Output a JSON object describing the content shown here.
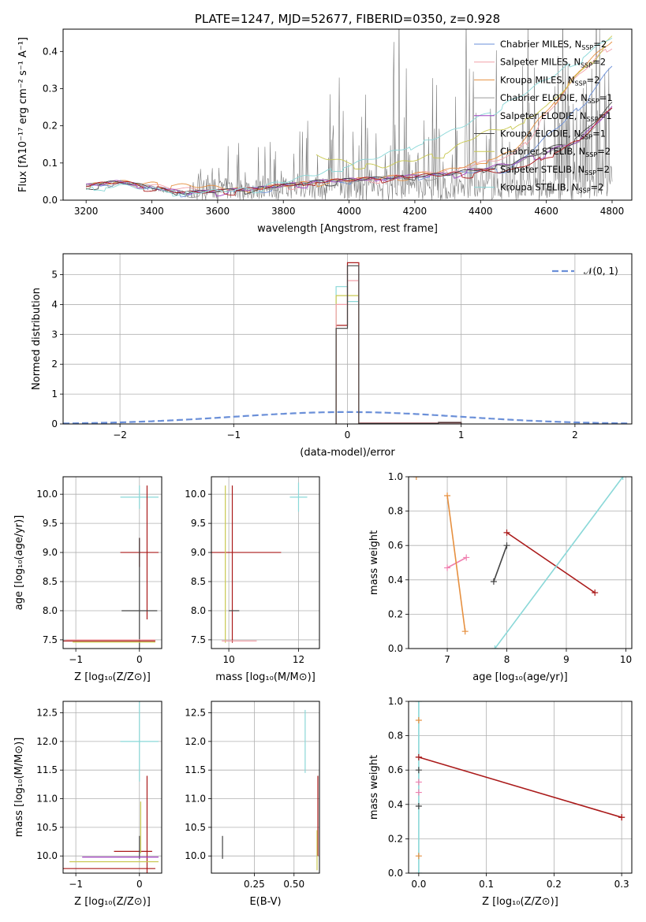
{
  "chart_data": [
    {
      "type": "line",
      "title": "PLATE=1247, MJD=52677, FIBERID=0350, z=0.928",
      "xlabel": "wavelength [Angstrom, rest frame]",
      "ylabel": "Flux [fλ10⁻¹⁷ erg cm⁻² s⁻¹ A⁻¹]",
      "xlim": [
        3130,
        4860
      ],
      "ylim": [
        0,
        0.46
      ],
      "xticks": [
        "3200",
        "3400",
        "3600",
        "3800",
        "4000",
        "4200",
        "4400",
        "4600",
        "4800"
      ],
      "yticks": [
        "0.0",
        "0.1",
        "0.2",
        "0.3",
        "0.4"
      ],
      "grid": false,
      "legend_position": "top-right",
      "series": [
        {
          "name": "Chabrier MILES, N_SSP=2",
          "color": "#6a8fd8",
          "x": [
            3200,
            3300,
            3500,
            3700,
            3900,
            4100,
            4300,
            4500,
            4700,
            4800
          ],
          "y": [
            0.04,
            0.05,
            0.02,
            0.03,
            0.05,
            0.06,
            0.07,
            0.09,
            0.25,
            0.36
          ]
        },
        {
          "name": "Salpeter MILES, N_SSP=2",
          "color": "#f2a0a8",
          "x": [
            3200,
            3300,
            3500,
            3700,
            3900,
            4100,
            4300,
            4500,
            4700,
            4800
          ],
          "y": [
            0.04,
            0.05,
            0.03,
            0.03,
            0.05,
            0.06,
            0.08,
            0.12,
            0.34,
            0.42
          ]
        },
        {
          "name": "Kroupa MILES, N_SSP=2",
          "color": "#e69040",
          "x": [
            3200,
            3300,
            3500,
            3700,
            3900,
            4100,
            4300,
            4500,
            4700,
            4800
          ],
          "y": [
            0.04,
            0.05,
            0.04,
            0.03,
            0.05,
            0.06,
            0.08,
            0.13,
            0.35,
            0.43
          ]
        },
        {
          "name": "Chabrier ELODIE, N_SSP=1",
          "color": "#9a9a9a",
          "x": [
            3200,
            3300,
            3500,
            3700,
            3900,
            4100,
            4300,
            4500,
            4700,
            4800
          ],
          "y": [
            0.04,
            0.05,
            0.02,
            0.03,
            0.05,
            0.06,
            0.07,
            0.1,
            0.16,
            0.25
          ]
        },
        {
          "name": "Salpeter ELODIE, N_SSP=1",
          "color": "#a040c0",
          "x": [
            3200,
            3300,
            3500,
            3700,
            3900,
            4100,
            4300,
            4500,
            4700,
            4800
          ],
          "y": [
            0.04,
            0.05,
            0.02,
            0.03,
            0.05,
            0.06,
            0.07,
            0.1,
            0.16,
            0.25
          ]
        },
        {
          "name": "Kroupa ELODIE, N_SSP=1",
          "color": "#444444",
          "x": [
            3200,
            3300,
            3500,
            3700,
            3900,
            4100,
            4300,
            4500,
            4700,
            4800
          ],
          "y": [
            0.04,
            0.05,
            0.02,
            0.03,
            0.05,
            0.06,
            0.07,
            0.1,
            0.17,
            0.26
          ]
        },
        {
          "name": "Chabrier STELIB, N_SSP=2",
          "color": "#c8c850",
          "x": [
            3900,
            4000,
            4100,
            4200,
            4300,
            4400,
            4500,
            4600,
            4700,
            4800
          ],
          "y": [
            0.12,
            0.1,
            0.09,
            0.11,
            0.13,
            0.18,
            0.2,
            0.25,
            0.34,
            0.44
          ]
        },
        {
          "name": "Salpeter STELIB, N_SSP=2",
          "color": "#aa1a1a",
          "x": [
            3200,
            3300,
            3500,
            3700,
            3900,
            4100,
            4300,
            4500,
            4700,
            4800
          ],
          "y": [
            0.04,
            0.05,
            0.02,
            0.03,
            0.05,
            0.06,
            0.07,
            0.08,
            0.16,
            0.25
          ]
        },
        {
          "name": "Kroupa STELIB, N_SSP=2",
          "color": "#8ad8d8",
          "x": [
            3200,
            3300,
            3500,
            3700,
            3900,
            4100,
            4300,
            4500,
            4700,
            4800
          ],
          "y": [
            0.03,
            0.04,
            0.02,
            0.03,
            0.07,
            0.12,
            0.18,
            0.27,
            0.38,
            0.44
          ]
        }
      ],
      "data_points": {
        "x": [
          3200,
          3300,
          3400,
          3500,
          3550,
          3600,
          3650,
          3700,
          3750,
          3800,
          3850,
          3900,
          3950,
          4000,
          4050,
          4100,
          4150,
          4200,
          4250,
          4300,
          4350,
          4400,
          4450,
          4500,
          4550,
          4600,
          4650,
          4700,
          4750,
          4800
        ],
        "y": [
          0.04,
          0.05,
          0.03,
          0.02,
          0.08,
          0.06,
          0.15,
          0.04,
          0.18,
          0.05,
          0.22,
          0.14,
          0.4,
          0.1,
          0.3,
          0.04,
          0.42,
          0.12,
          0.38,
          0.02,
          0.46,
          0.1,
          0.33,
          0.08,
          0.46,
          0.12,
          0.4,
          0.16,
          0.46,
          0.3
        ]
      }
    },
    {
      "type": "histogram",
      "xlabel": "(data-model)/error",
      "ylabel": "Normed distribution",
      "xlim": [
        -2.5,
        2.5
      ],
      "ylim": [
        0,
        5.7
      ],
      "xticks": [
        "−2",
        "−1",
        "0",
        "1",
        "2"
      ],
      "yticks": [
        "0",
        "1",
        "2",
        "3",
        "4",
        "5"
      ],
      "grid": true,
      "legend": "𝒩(0, 1)",
      "legend_position": "top-right",
      "bin_edges": [
        -0.1,
        0.0,
        0.1,
        0.8,
        1.0
      ],
      "series": [
        {
          "color": "#8ad8d8",
          "values": [
            4.6,
            4.1,
            0.02,
            0.06
          ]
        },
        {
          "color": "#c8c850",
          "values": [
            4.3,
            4.3,
            0.03,
            0.05
          ]
        },
        {
          "color": "#aa1a1a",
          "values": [
            3.3,
            5.4,
            0.02,
            0.04
          ]
        },
        {
          "color": "#f2a0a8",
          "values": [
            4.0,
            4.8,
            0.04,
            0.06
          ]
        },
        {
          "color": "#444444",
          "values": [
            3.2,
            5.3,
            0.02,
            0.05
          ]
        }
      ]
    },
    {
      "type": "scatter",
      "xlabel": "Z [log₁₀(Z/Z⊙)]",
      "ylabel": "age  [log₁₀(age/yr)]",
      "xlim": [
        -1.2,
        0.35
      ],
      "ylim": [
        7.35,
        10.3
      ],
      "xticks": [
        "−1",
        "0"
      ],
      "yticks": [
        "7.5",
        "8.0",
        "8.5",
        "9.0",
        "9.5",
        "10.0"
      ],
      "grid": true,
      "points": [
        {
          "color": "#8ad8d8",
          "x": 0.0,
          "y": 9.95,
          "xerr": 0.3,
          "yerr": 0.2
        },
        {
          "color": "#aa1a1a",
          "x": 0.0,
          "y": 9.0,
          "xerr": 0.3,
          "yerr": 0.25
        },
        {
          "color": "#aa1a1a",
          "x": 0.12,
          "y": 9.0,
          "xerr": 0.0,
          "yerr": 1.15
        },
        {
          "color": "#444444",
          "x": 0.0,
          "y": 8.0,
          "xerr": 0.28,
          "yerr": 1.25
        },
        {
          "color": "#aa1a1a",
          "x": -0.5,
          "y": 7.48,
          "xerr": 0.75,
          "yerr": 0.0
        },
        {
          "color": "#c8c850",
          "x": -0.4,
          "y": 7.46,
          "xerr": 0.65,
          "yerr": 0.0
        },
        {
          "color": "#f2a0a8",
          "x": -0.45,
          "y": 7.5,
          "xerr": 0.7,
          "yerr": 0.0
        }
      ]
    },
    {
      "type": "scatter",
      "xlabel": "mass [log₁₀(M/M⊙)]",
      "xlim": [
        9.5,
        12.6
      ],
      "ylim": [
        7.35,
        10.3
      ],
      "xticks": [
        "10",
        "12"
      ],
      "yticks": [
        "7.5",
        "8.0",
        "8.5",
        "9.0",
        "9.5",
        "10.0"
      ],
      "grid": true,
      "points": [
        {
          "color": "#8ad8d8",
          "x": 12.0,
          "y": 9.95,
          "xerr": 0.25,
          "yerr": 0.25
        },
        {
          "color": "#aa1a1a",
          "x": 10.4,
          "y": 9.0,
          "xerr": 1.1,
          "yerr": 0.0
        },
        {
          "color": "#aa1a1a",
          "x": 10.1,
          "y": 8.8,
          "xerr": 0.0,
          "yerr": 1.35
        },
        {
          "color": "#444444",
          "x": 10.15,
          "y": 8.0,
          "xerr": 0.15,
          "yerr": 0.0
        },
        {
          "color": "#c8c850",
          "x": 9.9,
          "y": 8.8,
          "xerr": 0.0,
          "yerr": 1.35
        },
        {
          "color": "#f2a0a8",
          "x": 10.3,
          "y": 7.48,
          "xerr": 0.5,
          "yerr": 0.0
        }
      ]
    },
    {
      "type": "line",
      "xlabel": "age  [log₁₀(age/yr)]",
      "ylabel": "mass weight",
      "xlim": [
        6.35,
        10.1
      ],
      "ylim": [
        0,
        1
      ],
      "xticks": [
        "7",
        "8",
        "9",
        "10"
      ],
      "yticks": [
        "0.0",
        "0.2",
        "0.4",
        "0.6",
        "0.8",
        "1.0"
      ],
      "grid": true,
      "series": [
        {
          "color": "#aa1a1a",
          "x": [
            8.0,
            9.48
          ],
          "y": [
            0.675,
            0.325
          ]
        },
        {
          "color": "#444444",
          "x": [
            7.78,
            8.0
          ],
          "y": [
            0.39,
            0.6
          ]
        },
        {
          "color": "#f080b0",
          "x": [
            7.0,
            7.32
          ],
          "y": [
            0.47,
            0.53
          ]
        },
        {
          "color": "#e69040",
          "x": [
            7.0,
            7.3
          ],
          "y": [
            0.89,
            0.1
          ]
        },
        {
          "color": "#8ad8d8",
          "x": [
            7.8,
            9.95
          ],
          "y": [
            0.0,
            1.0
          ]
        },
        {
          "color": "#e69040",
          "x": [
            6.48
          ],
          "y": [
            1.0
          ]
        }
      ]
    },
    {
      "type": "scatter",
      "xlabel": "Z [log₁₀(Z/Z⊙)]",
      "ylabel": "mass [log₁₀(M/M⊙)]",
      "xlim": [
        -1.2,
        0.35
      ],
      "ylim": [
        9.7,
        12.7
      ],
      "xticks": [
        "−1",
        "0"
      ],
      "yticks": [
        "10.0",
        "10.5",
        "11.0",
        "11.5",
        "12.0",
        "12.5"
      ],
      "grid": true,
      "points": [
        {
          "color": "#8ad8d8",
          "x": 0.0,
          "y": 12.0,
          "xerr": 0.3,
          "yerr": 0.7
        },
        {
          "color": "#aa1a1a",
          "x": 0.12,
          "y": 10.5,
          "xerr": 0.0,
          "yerr": 0.9
        },
        {
          "color": "#aa1a1a",
          "x": -0.1,
          "y": 10.08,
          "xerr": 0.3,
          "yerr": 0.0
        },
        {
          "color": "#444444",
          "x": 0.0,
          "y": 10.15,
          "xerr": 0.0,
          "yerr": 0.2
        },
        {
          "color": "#a040c0",
          "x": -0.3,
          "y": 9.98,
          "xerr": 0.6,
          "yerr": 0.0
        },
        {
          "color": "#c8c850",
          "x": -0.4,
          "y": 9.9,
          "xerr": 0.7,
          "yerr": 0.0
        },
        {
          "color": "#aa1a1a",
          "x": -0.5,
          "y": 9.78,
          "xerr": 0.75,
          "yerr": 0.0
        },
        {
          "color": "#c8c850",
          "x": 0.02,
          "y": 10.5,
          "xerr": 0.0,
          "yerr": 0.45
        }
      ]
    },
    {
      "type": "scatter",
      "xlabel": "E(B-V)",
      "xlim": [
        -0.02,
        0.66
      ],
      "ylim": [
        9.7,
        12.7
      ],
      "xticks": [
        "0.25",
        "0.50"
      ],
      "yticks": [
        "10.0",
        "10.5",
        "11.0",
        "11.5",
        "12.0",
        "12.5"
      ],
      "grid": true,
      "points": [
        {
          "color": "#8ad8d8",
          "x": 0.57,
          "y": 12.0,
          "xerr": 0.0,
          "yerr": 0.55
        },
        {
          "color": "#444444",
          "x": 0.05,
          "y": 10.15,
          "xerr": 0.0,
          "yerr": 0.2
        },
        {
          "color": "#aa1a1a",
          "x": 0.65,
          "y": 10.7,
          "xerr": 0.0,
          "yerr": 0.7
        },
        {
          "color": "#c8c850",
          "x": 0.645,
          "y": 10.1,
          "xerr": 0.0,
          "yerr": 0.35
        }
      ]
    },
    {
      "type": "line",
      "xlabel": "Z [log₁₀(Z/Z⊙)]",
      "ylabel": "mass weight",
      "xlim": [
        -0.015,
        0.315
      ],
      "ylim": [
        0,
        1
      ],
      "xticks": [
        "0.0",
        "0.1",
        "0.2",
        "0.3"
      ],
      "yticks": [
        "0.0",
        "0.2",
        "0.4",
        "0.6",
        "0.8",
        "1.0"
      ],
      "grid": true,
      "series": [
        {
          "color": "#aa1a1a",
          "x": [
            0.0,
            0.3
          ],
          "y": [
            0.675,
            0.325
          ]
        },
        {
          "color": "#8ad8d8",
          "x": [
            0.0,
            0.0
          ],
          "y": [
            0.0,
            1.0
          ]
        }
      ],
      "markers": [
        {
          "color": "#e69040",
          "x": 0.0,
          "y": 0.89
        },
        {
          "color": "#f080b0",
          "x": 0.0,
          "y": 0.53
        },
        {
          "color": "#f080b0",
          "x": 0.0,
          "y": 0.47
        },
        {
          "color": "#444444",
          "x": 0.0,
          "y": 0.6
        },
        {
          "color": "#444444",
          "x": 0.0,
          "y": 0.39
        },
        {
          "color": "#e69040",
          "x": 0.0,
          "y": 0.1
        },
        {
          "color": "#aa1a1a",
          "x": 0.0,
          "y": 0.675
        },
        {
          "color": "#aa1a1a",
          "x": 0.3,
          "y": 0.325
        }
      ]
    }
  ]
}
